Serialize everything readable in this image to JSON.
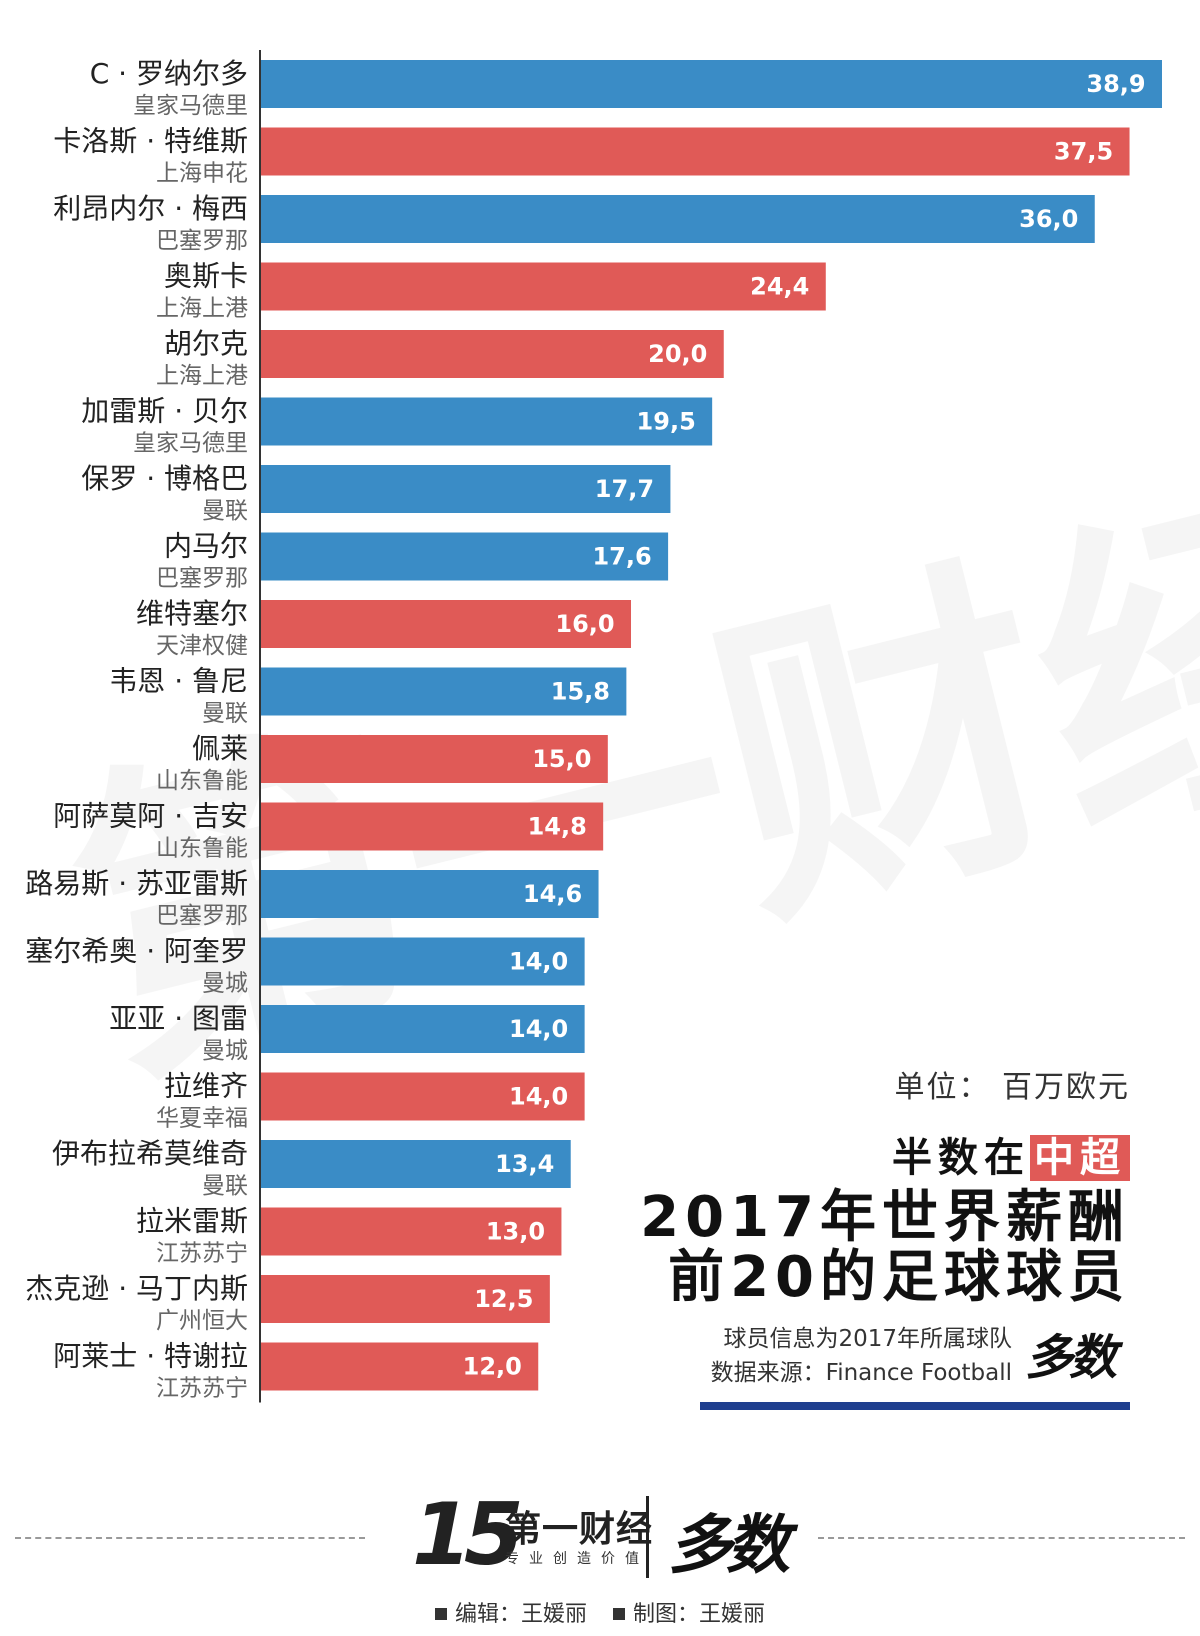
{
  "chart_data": {
    "type": "bar",
    "orientation": "horizontal",
    "unit": "百万欧元",
    "xlim": [
      0,
      40
    ],
    "players": [
      {
        "name": "C · 罗纳尔多",
        "club": "皇家马德里",
        "value": 38.9,
        "label": "38,9",
        "league": "other"
      },
      {
        "name": "卡洛斯 · 特维斯",
        "club": "上海申花",
        "value": 37.5,
        "label": "37,5",
        "league": "csl"
      },
      {
        "name": "利昂内尔 · 梅西",
        "club": "巴塞罗那",
        "value": 36.0,
        "label": "36,0",
        "league": "other"
      },
      {
        "name": "奥斯卡",
        "club": "上海上港",
        "value": 24.4,
        "label": "24,4",
        "league": "csl"
      },
      {
        "name": "胡尔克",
        "club": "上海上港",
        "value": 20.0,
        "label": "20,0",
        "league": "csl"
      },
      {
        "name": "加雷斯 · 贝尔",
        "club": "皇家马德里",
        "value": 19.5,
        "label": "19,5",
        "league": "other"
      },
      {
        "name": "保罗 · 博格巴",
        "club": "曼联",
        "value": 17.7,
        "label": "17,7",
        "league": "other"
      },
      {
        "name": "内马尔",
        "club": "巴塞罗那",
        "value": 17.6,
        "label": "17,6",
        "league": "other"
      },
      {
        "name": "维特塞尔",
        "club": "天津权健",
        "value": 16.0,
        "label": "16,0",
        "league": "csl"
      },
      {
        "name": "韦恩 · 鲁尼",
        "club": "曼联",
        "value": 15.8,
        "label": "15,8",
        "league": "other"
      },
      {
        "name": "佩莱",
        "club": "山东鲁能",
        "value": 15.0,
        "label": "15,0",
        "league": "csl"
      },
      {
        "name": "阿萨莫阿 · 吉安",
        "club": "山东鲁能",
        "value": 14.8,
        "label": "14,8",
        "league": "csl"
      },
      {
        "name": "路易斯 · 苏亚雷斯",
        "club": "巴塞罗那",
        "value": 14.6,
        "label": "14,6",
        "league": "other"
      },
      {
        "name": "塞尔希奥 · 阿奎罗",
        "club": "曼城",
        "value": 14.0,
        "label": "14,0",
        "league": "other"
      },
      {
        "name": "亚亚 · 图雷",
        "club": "曼城",
        "value": 14.0,
        "label": "14,0",
        "league": "other"
      },
      {
        "name": "拉维齐",
        "club": "华夏幸福",
        "value": 14.0,
        "label": "14,0",
        "league": "csl"
      },
      {
        "name": "伊布拉希莫维奇",
        "club": "曼联",
        "value": 13.4,
        "label": "13,4",
        "league": "other"
      },
      {
        "name": "拉米雷斯",
        "club": "江苏苏宁",
        "value": 13.0,
        "label": "13,0",
        "league": "csl"
      },
      {
        "name": "杰克逊 · 马丁内斯",
        "club": "广州恒大",
        "value": 12.5,
        "label": "12,5",
        "league": "csl"
      },
      {
        "name": "阿莱士 · 特谢拉",
        "club": "江苏苏宁",
        "value": 12.0,
        "label": "12,0",
        "league": "csl"
      }
    ]
  },
  "colors": {
    "other": "#3a8cc6",
    "csl": "#e05a57",
    "title_rule": "#1f3f8f"
  },
  "watermark": "第一财经",
  "unit_note": "单位：  百万欧元",
  "subtitle": {
    "prefix": "半数在",
    "highlight": "中超"
  },
  "title": {
    "line1": "2017年世界薪酬",
    "line2": "前20的足球球员"
  },
  "notes": {
    "line1": "球员信息为2017年所属球队",
    "line2": "数据来源：Finance Football"
  },
  "logo_duoshu": "多数",
  "footer": {
    "logo_number": "15",
    "logo_yicai": "第一财经",
    "tagline": "专业创造价值",
    "logo_duoshu": "多数",
    "editor_label": "编辑：",
    "editor_name": "王媛丽",
    "chart_label": "制图：",
    "chart_name": "王媛丽"
  }
}
